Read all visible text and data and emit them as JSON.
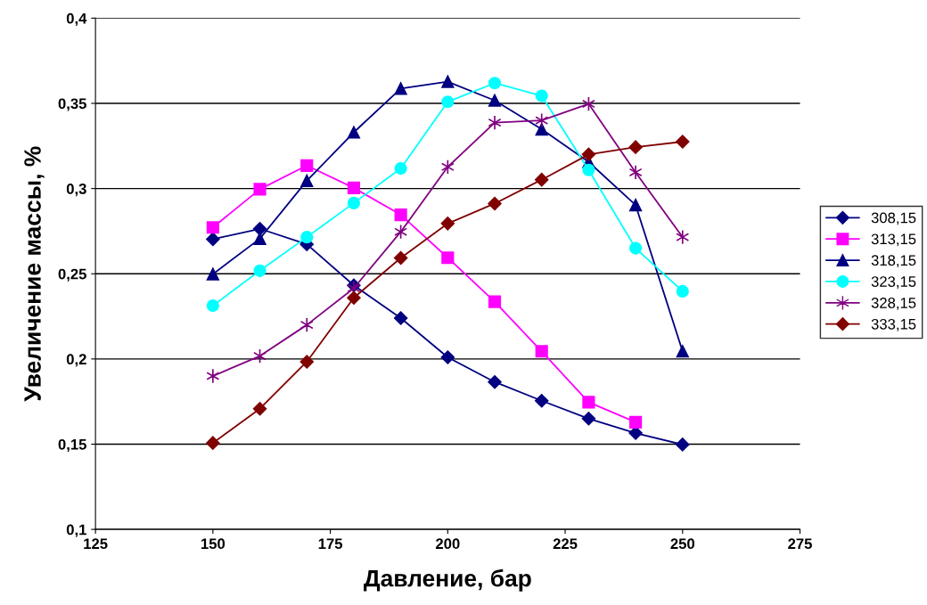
{
  "chart_data": {
    "type": "line",
    "xlabel": "Давление, бар",
    "ylabel": "Увеличение массы, %",
    "x": [
      150,
      160,
      170,
      180,
      190,
      200,
      210,
      220,
      230,
      240,
      250
    ],
    "xlim": [
      125,
      275
    ],
    "xticks": [
      125,
      150,
      175,
      200,
      225,
      250,
      275
    ],
    "ylim": [
      0.1,
      0.4
    ],
    "yticks": [
      {
        "value": 0.1,
        "label": "0,1"
      },
      {
        "value": 0.15,
        "label": "0,15"
      },
      {
        "value": 0.2,
        "label": "0,2"
      },
      {
        "value": 0.25,
        "label": "0,25"
      },
      {
        "value": 0.3,
        "label": "0,3"
      },
      {
        "value": 0.35,
        "label": "0,35"
      },
      {
        "value": 0.4,
        "label": "0,4"
      }
    ],
    "grid": "y",
    "legend": "right",
    "line_style": "solid",
    "series": [
      {
        "name": "308,15",
        "color": "#000080",
        "marker": "diamond",
        "values": [
          0.2703,
          0.2764,
          0.2673,
          0.2432,
          0.224,
          0.201,
          0.1865,
          0.1755,
          0.165,
          0.1565,
          0.1498
        ]
      },
      {
        "name": "313,15",
        "color": "#ff00ff",
        "marker": "square",
        "values": [
          0.2772,
          0.2996,
          0.3135,
          0.3004,
          0.2846,
          0.2594,
          0.2336,
          0.2045,
          0.1746,
          0.1629,
          null
        ]
      },
      {
        "name": "318,15",
        "color": "#000080",
        "marker": "triangle",
        "values": [
          0.2498,
          0.2706,
          0.3046,
          0.333,
          0.3587,
          0.3627,
          0.3517,
          0.3348,
          0.3156,
          0.2903,
          0.2045
        ]
      },
      {
        "name": "323,15",
        "color": "#00ffff",
        "marker": "circle",
        "values": [
          0.2313,
          0.2518,
          0.2715,
          0.2915,
          0.3118,
          0.3509,
          0.3619,
          0.3544,
          0.3109,
          0.265,
          0.2397
        ]
      },
      {
        "name": "328,15",
        "color": "#800080",
        "marker": "cross",
        "values": [
          0.19,
          0.2017,
          0.22,
          0.2415,
          0.2746,
          0.3127,
          0.3387,
          0.34,
          0.3497,
          0.3095,
          0.2715
        ]
      },
      {
        "name": "333,15",
        "color": "#800000",
        "marker": "diamond",
        "values": [
          0.1507,
          0.1708,
          0.1984,
          0.2359,
          0.2593,
          0.2795,
          0.2912,
          0.3052,
          0.32,
          0.3243,
          0.3275
        ]
      }
    ]
  }
}
